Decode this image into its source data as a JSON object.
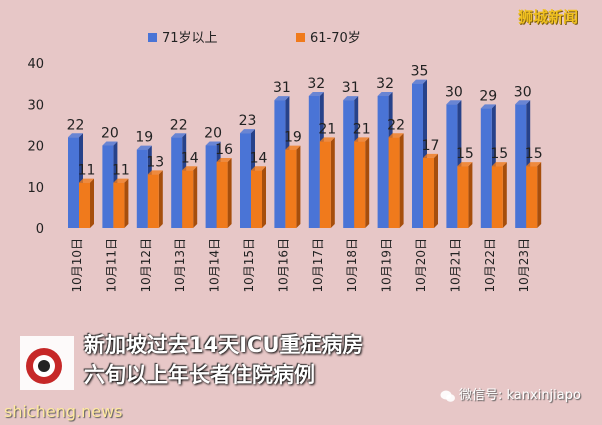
{
  "brand": "狮城新闻",
  "caption": {
    "line1": "新加坡过去14天ICU重症病房",
    "line2": "六旬以上年长者住院病例"
  },
  "site": "shicheng.news",
  "wechat": "微信号: kanxinjiapo",
  "colors": {
    "series1": "#4a74d6",
    "series2": "#f07a1c",
    "background": "#e7c7c7"
  },
  "chart_data": {
    "type": "bar",
    "categories": [
      "10月10日",
      "10月11日",
      "10月12日",
      "10月13日",
      "10月14日",
      "10月15日",
      "10月16日",
      "10月17日",
      "10月18日",
      "10月19日",
      "10月20日",
      "10月21日",
      "10月22日",
      "10月23日"
    ],
    "series": [
      {
        "name": "71岁以上",
        "values": [
          22,
          20,
          19,
          22,
          20,
          23,
          31,
          32,
          31,
          32,
          35,
          30,
          29,
          30
        ]
      },
      {
        "name": "61-70岁",
        "values": [
          11,
          11,
          13,
          14,
          16,
          14,
          19,
          21,
          21,
          22,
          17,
          15,
          15,
          15
        ]
      }
    ],
    "yticks": [
      0,
      10,
      20,
      30,
      40
    ],
    "ylim": [
      0,
      40
    ],
    "legend": "top"
  }
}
